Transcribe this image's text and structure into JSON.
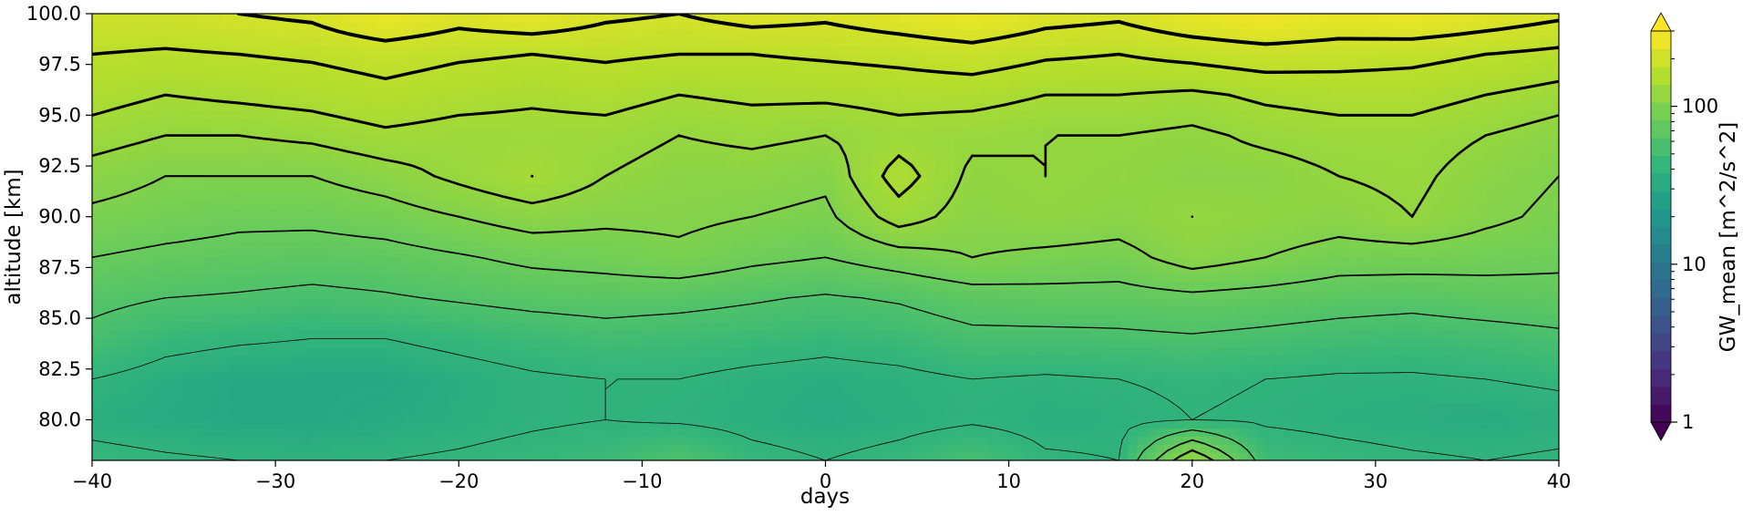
{
  "chart_data": {
    "type": "heatmap",
    "subtype": "filled-contour-with-line-contours",
    "title": "",
    "xlabel": "days",
    "ylabel": "altitude [km]",
    "xlim": [
      -40,
      40
    ],
    "ylim": [
      78,
      100
    ],
    "x_ticks": [
      -40,
      -30,
      -20,
      -10,
      0,
      10,
      20,
      30,
      40
    ],
    "x_tick_labels": [
      "−40",
      "−30",
      "−20",
      "−10",
      "0",
      "10",
      "20",
      "30",
      "40"
    ],
    "y_ticks": [
      80.0,
      82.5,
      85.0,
      87.5,
      90.0,
      92.5,
      95.0,
      97.5,
      100.0
    ],
    "y_tick_labels": [
      "80.0",
      "82.5",
      "85.0",
      "87.5",
      "90.0",
      "92.5",
      "95.0",
      "97.5",
      "100.0"
    ],
    "grid": false,
    "colorbar": {
      "label": "GW_mean [m^2/s^2]",
      "scale": "log",
      "range": [
        1,
        300
      ],
      "ticks": [
        1,
        10,
        100
      ],
      "tick_labels": [
        "1",
        "10",
        "100"
      ],
      "extend": "both",
      "colormap": "viridis"
    },
    "colors": {
      "low": "#440154",
      "mid_low": "#3b528b",
      "mid": "#21918c",
      "mid_high": "#5ec962",
      "high": "#fde725"
    },
    "days": [
      -40,
      -36,
      -32,
      -28,
      -24,
      -20,
      -16,
      -12,
      -8,
      -4,
      0,
      4,
      8,
      12,
      16,
      20,
      24,
      28,
      32,
      36,
      40
    ],
    "altitudes": [
      78,
      80,
      82,
      84,
      86,
      88,
      90,
      92,
      94,
      96,
      98,
      100
    ],
    "values_m2s2": [
      [
        45,
        42,
        40,
        38,
        40,
        42,
        45,
        48,
        60,
        45,
        40,
        45,
        55,
        42,
        40,
        120,
        50,
        45,
        42,
        40,
        42
      ],
      [
        35,
        32,
        30,
        30,
        32,
        35,
        38,
        40,
        38,
        35,
        32,
        35,
        38,
        35,
        36,
        40,
        38,
        36,
        34,
        33,
        35
      ],
      [
        40,
        34,
        30,
        30,
        30,
        34,
        38,
        40,
        40,
        36,
        34,
        36,
        40,
        38,
        40,
        42,
        40,
        38,
        38,
        40,
        42
      ],
      [
        55,
        45,
        42,
        40,
        40,
        44,
        48,
        52,
        50,
        48,
        45,
        48,
        55,
        55,
        56,
        58,
        55,
        52,
        50,
        52,
        56
      ],
      [
        65,
        60,
        58,
        55,
        58,
        62,
        66,
        68,
        66,
        62,
        58,
        62,
        70,
        72,
        72,
        75,
        72,
        68,
        66,
        70,
        72
      ],
      [
        80,
        75,
        72,
        70,
        72,
        78,
        85,
        88,
        95,
        85,
        80,
        90,
        100,
        95,
        92,
        110,
        100,
        90,
        90,
        88,
        85
      ],
      [
        95,
        90,
        85,
        85,
        90,
        100,
        110,
        105,
        105,
        100,
        95,
        130,
        110,
        115,
        110,
        120,
        115,
        110,
        120,
        105,
        95
      ],
      [
        110,
        100,
        100,
        100,
        110,
        125,
        140,
        120,
        110,
        110,
        105,
        150,
        115,
        120,
        115,
        110,
        110,
        120,
        125,
        110,
        100
      ],
      [
        130,
        120,
        120,
        125,
        135,
        130,
        130,
        130,
        120,
        125,
        120,
        130,
        125,
        120,
        120,
        115,
        125,
        130,
        130,
        120,
        110
      ],
      [
        150,
        140,
        145,
        150,
        160,
        150,
        145,
        150,
        140,
        145,
        145,
        150,
        150,
        140,
        140,
        135,
        145,
        150,
        150,
        140,
        130
      ],
      [
        170,
        165,
        170,
        175,
        185,
        175,
        170,
        175,
        170,
        170,
        175,
        180,
        190,
        175,
        170,
        180,
        190,
        185,
        180,
        170,
        160
      ],
      [
        200,
        200,
        210,
        220,
        260,
        230,
        250,
        220,
        210,
        230,
        220,
        240,
        260,
        230,
        220,
        250,
        270,
        250,
        260,
        240,
        220
      ]
    ]
  }
}
